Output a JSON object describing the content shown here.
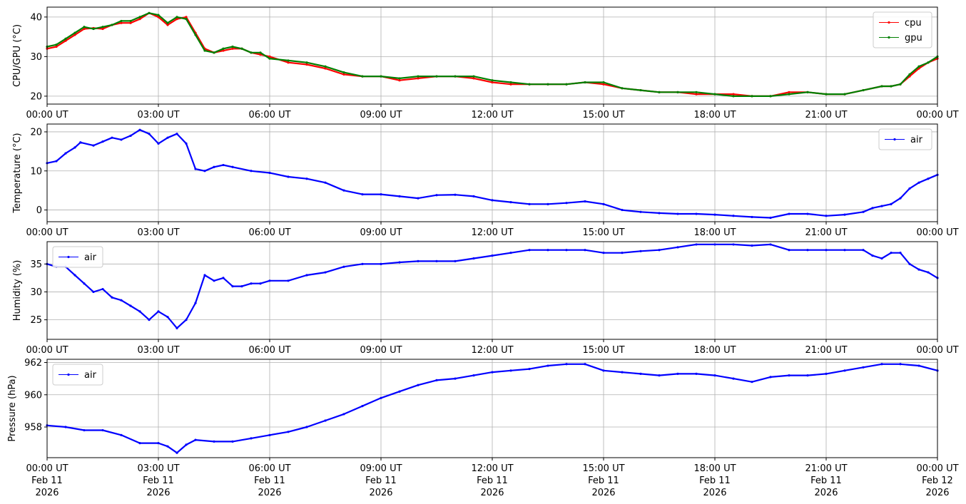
{
  "chart_data": [
    {
      "type": "line",
      "ylabel": "CPU/GPU (°C)",
      "xlim": [
        0,
        24
      ],
      "ylim": [
        18,
        42.5
      ],
      "yticks": [
        20,
        30,
        40
      ],
      "grid": true,
      "legend_position": "top-right",
      "x_tick_labels": [
        "00:00 UT",
        "03:00 UT",
        "06:00 UT",
        "09:00 UT",
        "12:00 UT",
        "15:00 UT",
        "18:00 UT",
        "21:00 UT",
        "00:00 UT"
      ],
      "series": [
        {
          "name": "cpu",
          "color": "#ff0000",
          "x": [
            0,
            0.25,
            0.5,
            0.75,
            1.0,
            1.25,
            1.5,
            1.75,
            2.0,
            2.25,
            2.5,
            2.75,
            3.0,
            3.25,
            3.5,
            3.75,
            4.0,
            4.25,
            4.5,
            4.75,
            5.0,
            5.25,
            5.5,
            5.75,
            6.0,
            6.5,
            7.0,
            7.5,
            8.0,
            8.5,
            9.0,
            9.5,
            10.0,
            10.5,
            11.0,
            11.5,
            12.0,
            12.5,
            13.0,
            13.5,
            14.0,
            14.5,
            15.0,
            15.5,
            16.0,
            16.5,
            17.0,
            17.5,
            18.0,
            18.5,
            19.0,
            19.5,
            20.0,
            20.5,
            21.0,
            21.5,
            22.0,
            22.5,
            22.75,
            23.0,
            23.25,
            23.5,
            23.75,
            24.0
          ],
          "y": [
            32,
            32.5,
            34,
            35.5,
            37,
            37.2,
            37,
            38,
            38.5,
            38.5,
            39.5,
            41,
            40,
            38,
            39.5,
            40,
            36,
            32,
            31,
            31.5,
            32,
            32,
            31,
            30.5,
            30,
            28.5,
            28,
            27,
            25.5,
            25,
            25,
            24,
            24.5,
            25,
            25,
            24.5,
            23.5,
            23,
            23,
            23,
            23,
            23.5,
            23,
            22,
            21.5,
            21,
            21,
            20.5,
            20.5,
            20.5,
            20,
            20,
            21,
            21,
            20.5,
            20.5,
            21.5,
            22.5,
            22.5,
            23,
            25,
            27,
            28.5,
            29.5
          ]
        },
        {
          "name": "gpu",
          "color": "#008000",
          "x": [
            0,
            0.25,
            0.5,
            0.75,
            1.0,
            1.25,
            1.5,
            1.75,
            2.0,
            2.25,
            2.5,
            2.75,
            3.0,
            3.25,
            3.5,
            3.75,
            4.0,
            4.25,
            4.5,
            4.75,
            5.0,
            5.25,
            5.5,
            5.75,
            6.0,
            6.5,
            7.0,
            7.5,
            8.0,
            8.5,
            9.0,
            9.5,
            10.0,
            10.5,
            11.0,
            11.5,
            12.0,
            12.5,
            13.0,
            13.5,
            14.0,
            14.5,
            15.0,
            15.5,
            16.0,
            16.5,
            17.0,
            17.5,
            18.0,
            18.5,
            19.0,
            19.5,
            20.0,
            20.5,
            21.0,
            21.5,
            22.0,
            22.5,
            22.75,
            23.0,
            23.25,
            23.5,
            23.75,
            24.0
          ],
          "y": [
            32.5,
            33,
            34.5,
            36,
            37.5,
            37,
            37.5,
            38,
            39,
            39,
            40,
            41,
            40.5,
            38.5,
            40,
            39.5,
            35.5,
            31.5,
            31,
            32,
            32.5,
            32,
            31,
            31,
            29.5,
            29,
            28.5,
            27.5,
            26,
            25,
            25,
            24.5,
            25,
            25,
            25,
            25,
            24,
            23.5,
            23,
            23,
            23,
            23.5,
            23.5,
            22,
            21.5,
            21,
            21,
            21,
            20.5,
            20,
            20,
            20,
            20.5,
            21,
            20.5,
            20.5,
            21.5,
            22.5,
            22.5,
            23,
            25.5,
            27.5,
            28.5,
            30
          ]
        }
      ]
    },
    {
      "type": "line",
      "ylabel": "Temperature (°C)",
      "xlim": [
        0,
        24
      ],
      "ylim": [
        -3,
        22
      ],
      "yticks": [
        0,
        10,
        20
      ],
      "grid": true,
      "legend_position": "top-right",
      "x_tick_labels": [
        "00:00 UT",
        "03:00 UT",
        "06:00 UT",
        "09:00 UT",
        "12:00 UT",
        "15:00 UT",
        "18:00 UT",
        "21:00 UT",
        "00:00 UT"
      ],
      "series": [
        {
          "name": "air",
          "color": "#0000ff",
          "x": [
            0,
            0.25,
            0.5,
            0.75,
            0.9,
            1.25,
            1.5,
            1.75,
            2.0,
            2.25,
            2.5,
            2.75,
            3.0,
            3.25,
            3.5,
            3.75,
            4.0,
            4.25,
            4.5,
            4.75,
            5.0,
            5.5,
            6.0,
            6.5,
            7.0,
            7.5,
            8.0,
            8.5,
            9.0,
            9.5,
            10.0,
            10.5,
            11.0,
            11.5,
            12.0,
            12.5,
            13.0,
            13.5,
            14.0,
            14.5,
            15.0,
            15.5,
            16.0,
            16.5,
            17.0,
            17.5,
            18.0,
            18.5,
            19.0,
            19.5,
            20.0,
            20.5,
            21.0,
            21.5,
            22.0,
            22.25,
            22.5,
            22.75,
            23.0,
            23.25,
            23.5,
            23.75,
            24.0
          ],
          "y": [
            12,
            12.5,
            14.5,
            16,
            17.3,
            16.5,
            17.5,
            18.5,
            18,
            19,
            20.5,
            19.5,
            17,
            18.5,
            19.5,
            17,
            10.5,
            10,
            11,
            11.5,
            11,
            10,
            9.5,
            8.5,
            8,
            7,
            5,
            4,
            4,
            3.5,
            3,
            3.8,
            3.9,
            3.5,
            2.5,
            2,
            1.5,
            1.5,
            1.8,
            2.2,
            1.5,
            0,
            -0.5,
            -0.8,
            -1,
            -1,
            -1.2,
            -1.5,
            -1.8,
            -2,
            -1,
            -1,
            -1.5,
            -1.2,
            -0.5,
            0.5,
            1,
            1.5,
            3,
            5.5,
            7,
            8,
            9
          ]
        }
      ]
    },
    {
      "type": "line",
      "ylabel": "Humidity (%)",
      "xlim": [
        0,
        24
      ],
      "ylim": [
        21.5,
        39
      ],
      "yticks": [
        25,
        30,
        35
      ],
      "grid": true,
      "legend_position": "top-left",
      "x_tick_labels": [
        "00:00 UT",
        "03:00 UT",
        "06:00 UT",
        "09:00 UT",
        "12:00 UT",
        "15:00 UT",
        "18:00 UT",
        "21:00 UT",
        "00:00 UT"
      ],
      "series": [
        {
          "name": "air",
          "color": "#0000ff",
          "x": [
            0,
            0.25,
            0.5,
            0.75,
            1.0,
            1.25,
            1.5,
            1.75,
            2.0,
            2.25,
            2.5,
            2.75,
            3.0,
            3.25,
            3.5,
            3.75,
            4.0,
            4.25,
            4.5,
            4.75,
            5.0,
            5.25,
            5.5,
            5.75,
            6.0,
            6.5,
            7.0,
            7.5,
            8.0,
            8.5,
            9.0,
            9.5,
            10.0,
            10.5,
            11.0,
            11.5,
            12.0,
            12.5,
            13.0,
            13.5,
            14.0,
            14.5,
            15.0,
            15.5,
            16.0,
            16.5,
            17.0,
            17.5,
            18.0,
            18.5,
            19.0,
            19.5,
            20.0,
            20.5,
            21.0,
            21.5,
            22.0,
            22.25,
            22.5,
            22.75,
            23.0,
            23.25,
            23.5,
            23.75,
            24.0
          ],
          "y": [
            35,
            34.5,
            34.5,
            33,
            31.5,
            30,
            30.5,
            29,
            28.5,
            27.5,
            26.5,
            25,
            26.5,
            25.5,
            23.5,
            25,
            28,
            33,
            32,
            32.5,
            31,
            31,
            31.5,
            31.5,
            32,
            32,
            33,
            33.5,
            34.5,
            35,
            35,
            35.3,
            35.5,
            35.5,
            35.5,
            36,
            36.5,
            37,
            37.5,
            37.5,
            37.5,
            37.5,
            37,
            37,
            37.3,
            37.5,
            38,
            38.5,
            38.5,
            38.5,
            38.3,
            38.5,
            37.5,
            37.5,
            37.5,
            37.5,
            37.5,
            36.5,
            36,
            37,
            37,
            35,
            34,
            33.5,
            32.5
          ]
        }
      ]
    },
    {
      "type": "line",
      "ylabel": "Pressure (hPa)",
      "xlim": [
        0,
        24
      ],
      "ylim": [
        956.1,
        962.2
      ],
      "yticks": [
        958,
        960,
        962
      ],
      "grid": true,
      "legend_position": "top-left",
      "x_tick_labels": [
        "00:00 UT\nFeb 11\n2026",
        "03:00 UT\nFeb 11\n2026",
        "06:00 UT\nFeb 11\n2026",
        "09:00 UT\nFeb 11\n2026",
        "12:00 UT\nFeb 11\n2026",
        "15:00 UT\nFeb 11\n2026",
        "18:00 UT\nFeb 11\n2026",
        "21:00 UT\nFeb 11\n2026",
        "00:00 UT\nFeb 12\n2026"
      ],
      "series": [
        {
          "name": "air",
          "color": "#0000ff",
          "x": [
            0,
            0.5,
            1.0,
            1.5,
            2.0,
            2.5,
            3.0,
            3.25,
            3.5,
            3.75,
            4.0,
            4.5,
            5.0,
            5.5,
            6.0,
            6.5,
            7.0,
            7.5,
            8.0,
            8.5,
            9.0,
            9.5,
            10.0,
            10.5,
            11.0,
            11.5,
            12.0,
            12.5,
            13.0,
            13.5,
            14.0,
            14.5,
            15.0,
            15.5,
            16.0,
            16.5,
            17.0,
            17.5,
            18.0,
            18.5,
            19.0,
            19.5,
            20.0,
            20.5,
            21.0,
            21.5,
            22.0,
            22.5,
            23.0,
            23.5,
            24.0
          ],
          "y": [
            958.1,
            958,
            957.8,
            957.8,
            957.5,
            957,
            957,
            956.8,
            956.4,
            956.9,
            957.2,
            957.1,
            957.1,
            957.3,
            957.5,
            957.7,
            958,
            958.4,
            958.8,
            959.3,
            959.8,
            960.2,
            960.6,
            960.9,
            961,
            961.2,
            961.4,
            961.5,
            961.6,
            961.8,
            961.9,
            961.9,
            961.5,
            961.4,
            961.3,
            961.2,
            961.3,
            961.3,
            961.2,
            961,
            960.8,
            961.1,
            961.2,
            961.2,
            961.3,
            961.5,
            961.7,
            961.9,
            961.9,
            961.8,
            961.5
          ]
        }
      ]
    }
  ]
}
